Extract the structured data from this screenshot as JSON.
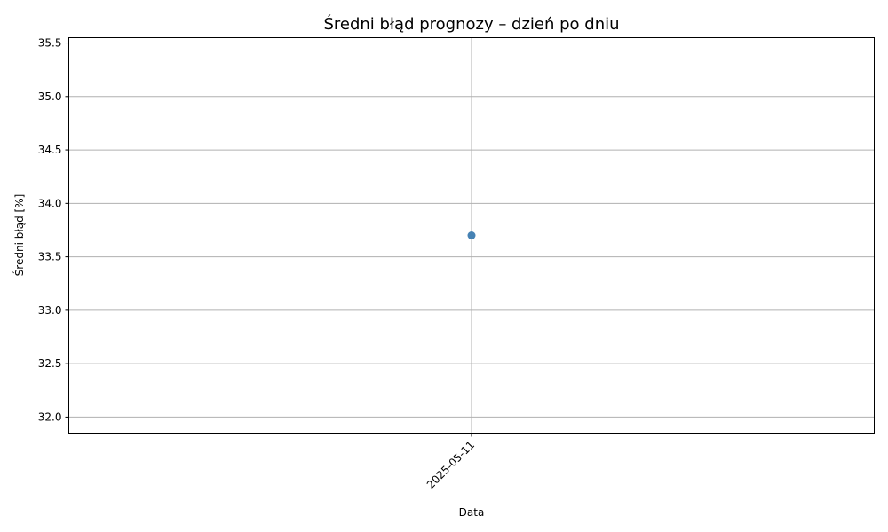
{
  "chart_data": {
    "type": "line",
    "title": "Średni błąd prognozy – dzień po dniu",
    "xlabel": "Data",
    "ylabel": "Średni błąd [%]",
    "x": [
      "2025-05-11"
    ],
    "series": [
      {
        "values": [
          33.7
        ],
        "color": "#4682b4"
      }
    ],
    "ylim": [
      31.85,
      35.55
    ],
    "yticks": [
      32.0,
      32.5,
      33.0,
      33.5,
      34.0,
      34.5,
      35.0,
      35.5
    ],
    "ytick_labels": [
      "32.0",
      "32.5",
      "33.0",
      "33.5",
      "34.0",
      "34.5",
      "35.0",
      "35.5"
    ],
    "grid": true,
    "marker": "circle"
  }
}
